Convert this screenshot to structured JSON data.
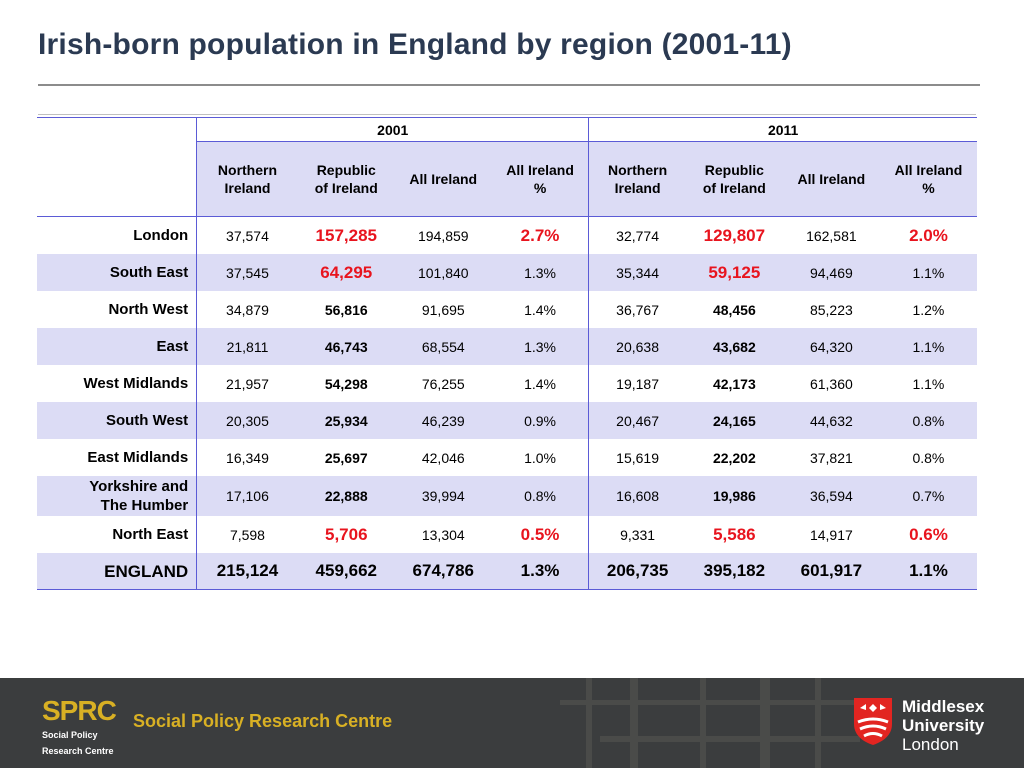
{
  "title": "Irish-born population in England by region (2001-11)",
  "table": {
    "years": [
      "2001",
      "2011"
    ],
    "columns": [
      "Northern Ireland",
      "Republic of Ireland",
      "All Ireland",
      "All Ireland %",
      "Northern Ireland",
      "Republic of Ireland",
      "All Ireland",
      "All Ireland %"
    ],
    "column_lines": [
      [
        "Northern",
        "Ireland"
      ],
      [
        "Republic",
        "of Ireland"
      ],
      [
        "All Ireland",
        ""
      ],
      [
        "All Ireland",
        "%"
      ],
      [
        "Northern",
        "Ireland"
      ],
      [
        "Republic",
        "of Ireland"
      ],
      [
        "All Ireland",
        ""
      ],
      [
        "All Ireland",
        "%"
      ]
    ],
    "rows": [
      {
        "region_lines": [
          "London",
          ""
        ],
        "values": [
          "37,574",
          "157,285",
          "194,859",
          "2.7%",
          "32,774",
          "129,807",
          "162,581",
          "2.0%"
        ]
      },
      {
        "region_lines": [
          "South East",
          ""
        ],
        "values": [
          "37,545",
          "64,295",
          "101,840",
          "1.3%",
          "35,344",
          "59,125",
          "94,469",
          "1.1%"
        ]
      },
      {
        "region_lines": [
          "North West",
          ""
        ],
        "values": [
          "34,879",
          "56,816",
          "91,695",
          "1.4%",
          "36,767",
          "48,456",
          "85,223",
          "1.2%"
        ]
      },
      {
        "region_lines": [
          "East",
          ""
        ],
        "values": [
          "21,811",
          "46,743",
          "68,554",
          "1.3%",
          "20,638",
          "43,682",
          "64,320",
          "1.1%"
        ]
      },
      {
        "region_lines": [
          "West Midlands",
          ""
        ],
        "values": [
          "21,957",
          "54,298",
          "76,255",
          "1.4%",
          "19,187",
          "42,173",
          "61,360",
          "1.1%"
        ]
      },
      {
        "region_lines": [
          "South West",
          ""
        ],
        "values": [
          "20,305",
          "25,934",
          "46,239",
          "0.9%",
          "20,467",
          "24,165",
          "44,632",
          "0.8%"
        ]
      },
      {
        "region_lines": [
          "East Midlands",
          ""
        ],
        "values": [
          "16,349",
          "25,697",
          "42,046",
          "1.0%",
          "15,619",
          "22,202",
          "37,821",
          "0.8%"
        ]
      },
      {
        "region_lines": [
          "Yorkshire and",
          "The Humber"
        ],
        "values": [
          "17,106",
          "22,888",
          "39,994",
          "0.8%",
          "16,608",
          "19,986",
          "36,594",
          "0.7%"
        ]
      },
      {
        "region_lines": [
          "North East",
          ""
        ],
        "values": [
          "7,598",
          "5,706",
          "13,304",
          "0.5%",
          "9,331",
          "5,586",
          "14,917",
          "0.6%"
        ]
      }
    ],
    "total": {
      "region": "ENGLAND",
      "values": [
        "215,124",
        "459,662",
        "674,786",
        "1.3%",
        "206,735",
        "395,182",
        "601,917",
        "1.1%"
      ]
    },
    "highlight_color": "#e8141e",
    "shade_color": "#dcdcf5",
    "border_color": "#5b5bd6"
  },
  "footer": {
    "sprc_logo_text": "SPRC",
    "sprc_logo_sub": [
      "Social Policy",
      "Research Centre"
    ],
    "sprc_name": "Social Policy Research Centre",
    "university_lines": [
      "Middlesex",
      "University",
      "London"
    ],
    "shield_icon": "middlesex-shield-icon",
    "accent_gold": "#d8b024",
    "footer_bg": "#3b3d3e",
    "shield_red": "#e22521"
  }
}
